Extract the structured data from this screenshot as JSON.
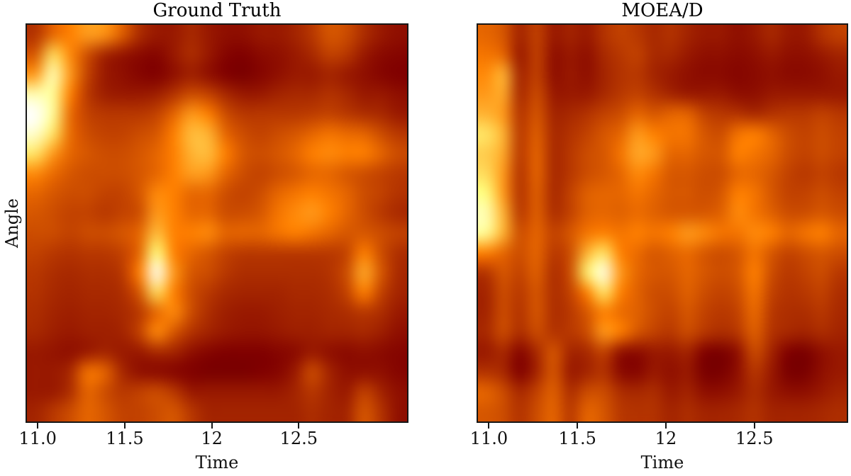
{
  "figure": {
    "background_color": "#ffffff",
    "spine_color": "#161616",
    "text_color": "#000000"
  },
  "chart_data": [
    {
      "type": "heatmap",
      "title": "Ground Truth",
      "xlabel": "Time",
      "ylabel": "Angle",
      "colormap": "afmhot",
      "values_normalized": true,
      "value_range": [
        0,
        1
      ],
      "x_range": [
        10.93,
        13.13
      ],
      "xtick_values": [
        11.0,
        11.5,
        12.0,
        12.5
      ],
      "xtick_labels": [
        "11.0",
        "11.5",
        "12",
        "12.5"
      ],
      "ytick_labels": [],
      "grid_shape": [
        20,
        22
      ],
      "values": [
        [
          0.35,
          0.45,
          0.5,
          0.56,
          0.54,
          0.44,
          0.34,
          0.3,
          0.3,
          0.33,
          0.3,
          0.28,
          0.28,
          0.3,
          0.3,
          0.32,
          0.36,
          0.42,
          0.4,
          0.34,
          0.3,
          0.28
        ],
        [
          0.42,
          0.68,
          0.52,
          0.4,
          0.32,
          0.29,
          0.27,
          0.26,
          0.3,
          0.34,
          0.3,
          0.26,
          0.25,
          0.27,
          0.28,
          0.3,
          0.33,
          0.38,
          0.36,
          0.3,
          0.27,
          0.26
        ],
        [
          0.55,
          0.85,
          0.55,
          0.38,
          0.3,
          0.28,
          0.26,
          0.25,
          0.28,
          0.31,
          0.28,
          0.25,
          0.24,
          0.26,
          0.28,
          0.3,
          0.3,
          0.32,
          0.3,
          0.28,
          0.26,
          0.25
        ],
        [
          0.85,
          0.8,
          0.5,
          0.36,
          0.31,
          0.3,
          0.3,
          0.31,
          0.35,
          0.4,
          0.38,
          0.33,
          0.3,
          0.3,
          0.32,
          0.33,
          0.33,
          0.35,
          0.33,
          0.3,
          0.3,
          0.28
        ],
        [
          1.0,
          0.8,
          0.46,
          0.38,
          0.36,
          0.36,
          0.36,
          0.38,
          0.45,
          0.55,
          0.5,
          0.4,
          0.36,
          0.36,
          0.36,
          0.36,
          0.37,
          0.38,
          0.36,
          0.34,
          0.33,
          0.3
        ],
        [
          0.9,
          0.7,
          0.46,
          0.4,
          0.38,
          0.38,
          0.4,
          0.42,
          0.5,
          0.62,
          0.6,
          0.45,
          0.4,
          0.38,
          0.4,
          0.42,
          0.45,
          0.48,
          0.46,
          0.45,
          0.4,
          0.36
        ],
        [
          0.7,
          0.55,
          0.45,
          0.42,
          0.4,
          0.4,
          0.42,
          0.45,
          0.5,
          0.6,
          0.62,
          0.5,
          0.42,
          0.4,
          0.42,
          0.45,
          0.5,
          0.52,
          0.5,
          0.5,
          0.45,
          0.4
        ],
        [
          0.52,
          0.46,
          0.42,
          0.4,
          0.4,
          0.4,
          0.42,
          0.45,
          0.5,
          0.56,
          0.55,
          0.45,
          0.4,
          0.38,
          0.4,
          0.42,
          0.45,
          0.45,
          0.42,
          0.4,
          0.38,
          0.36
        ],
        [
          0.45,
          0.42,
          0.4,
          0.4,
          0.38,
          0.38,
          0.42,
          0.52,
          0.5,
          0.45,
          0.45,
          0.4,
          0.38,
          0.4,
          0.45,
          0.48,
          0.5,
          0.48,
          0.45,
          0.4,
          0.38,
          0.35
        ],
        [
          0.42,
          0.4,
          0.38,
          0.38,
          0.36,
          0.38,
          0.4,
          0.55,
          0.5,
          0.45,
          0.45,
          0.4,
          0.4,
          0.42,
          0.48,
          0.52,
          0.55,
          0.5,
          0.45,
          0.4,
          0.36,
          0.33
        ],
        [
          0.4,
          0.4,
          0.38,
          0.4,
          0.4,
          0.42,
          0.45,
          0.62,
          0.5,
          0.5,
          0.52,
          0.45,
          0.45,
          0.45,
          0.48,
          0.5,
          0.48,
          0.45,
          0.42,
          0.42,
          0.4,
          0.38
        ],
        [
          0.38,
          0.36,
          0.35,
          0.36,
          0.36,
          0.38,
          0.45,
          0.75,
          0.5,
          0.45,
          0.42,
          0.38,
          0.36,
          0.36,
          0.36,
          0.36,
          0.36,
          0.36,
          0.38,
          0.5,
          0.4,
          0.34
        ],
        [
          0.36,
          0.34,
          0.33,
          0.34,
          0.34,
          0.36,
          0.5,
          0.97,
          0.55,
          0.42,
          0.4,
          0.36,
          0.34,
          0.34,
          0.34,
          0.34,
          0.34,
          0.35,
          0.4,
          0.58,
          0.42,
          0.33
        ],
        [
          0.35,
          0.33,
          0.32,
          0.33,
          0.33,
          0.34,
          0.42,
          0.68,
          0.5,
          0.4,
          0.36,
          0.33,
          0.32,
          0.32,
          0.32,
          0.33,
          0.33,
          0.34,
          0.38,
          0.5,
          0.38,
          0.32
        ],
        [
          0.34,
          0.32,
          0.31,
          0.32,
          0.32,
          0.33,
          0.36,
          0.45,
          0.52,
          0.4,
          0.34,
          0.31,
          0.3,
          0.3,
          0.31,
          0.32,
          0.32,
          0.33,
          0.34,
          0.36,
          0.34,
          0.3
        ],
        [
          0.33,
          0.31,
          0.3,
          0.31,
          0.31,
          0.32,
          0.38,
          0.52,
          0.42,
          0.35,
          0.32,
          0.3,
          0.29,
          0.29,
          0.3,
          0.31,
          0.31,
          0.32,
          0.32,
          0.33,
          0.31,
          0.28
        ],
        [
          0.3,
          0.29,
          0.28,
          0.3,
          0.32,
          0.3,
          0.3,
          0.33,
          0.32,
          0.28,
          0.26,
          0.25,
          0.25,
          0.25,
          0.26,
          0.27,
          0.3,
          0.28,
          0.27,
          0.28,
          0.27,
          0.26
        ],
        [
          0.3,
          0.3,
          0.33,
          0.48,
          0.45,
          0.33,
          0.28,
          0.27,
          0.26,
          0.25,
          0.24,
          0.24,
          0.24,
          0.25,
          0.26,
          0.3,
          0.4,
          0.32,
          0.28,
          0.28,
          0.28,
          0.26
        ],
        [
          0.3,
          0.3,
          0.34,
          0.45,
          0.4,
          0.36,
          0.38,
          0.4,
          0.36,
          0.3,
          0.3,
          0.3,
          0.3,
          0.3,
          0.3,
          0.32,
          0.36,
          0.32,
          0.3,
          0.38,
          0.32,
          0.28
        ],
        [
          0.32,
          0.36,
          0.4,
          0.45,
          0.42,
          0.38,
          0.38,
          0.4,
          0.42,
          0.36,
          0.32,
          0.32,
          0.32,
          0.32,
          0.32,
          0.32,
          0.34,
          0.32,
          0.32,
          0.42,
          0.35,
          0.28
        ]
      ]
    },
    {
      "type": "heatmap",
      "title": "MOEA/D",
      "xlabel": "Time",
      "ylabel": "",
      "colormap": "afmhot",
      "values_normalized": true,
      "value_range": [
        0,
        1
      ],
      "x_range": [
        10.93,
        13.03
      ],
      "xtick_values": [
        11.0,
        11.5,
        12.0,
        12.5
      ],
      "xtick_labels": [
        "11.0",
        "11.5",
        "12",
        "12.5"
      ],
      "ytick_labels": [],
      "grid_shape": [
        20,
        22
      ],
      "values": [
        [
          0.45,
          0.42,
          0.32,
          0.38,
          0.3,
          0.32,
          0.3,
          0.35,
          0.38,
          0.36,
          0.33,
          0.35,
          0.32,
          0.3,
          0.3,
          0.28,
          0.3,
          0.33,
          0.3,
          0.3,
          0.35,
          0.38
        ],
        [
          0.48,
          0.45,
          0.3,
          0.38,
          0.28,
          0.3,
          0.28,
          0.33,
          0.36,
          0.38,
          0.33,
          0.33,
          0.3,
          0.28,
          0.28,
          0.27,
          0.28,
          0.3,
          0.28,
          0.28,
          0.3,
          0.32
        ],
        [
          0.52,
          0.6,
          0.32,
          0.38,
          0.28,
          0.3,
          0.28,
          0.32,
          0.35,
          0.36,
          0.32,
          0.3,
          0.28,
          0.27,
          0.27,
          0.26,
          0.27,
          0.28,
          0.27,
          0.27,
          0.28,
          0.3
        ],
        [
          0.55,
          0.58,
          0.33,
          0.4,
          0.3,
          0.3,
          0.3,
          0.33,
          0.36,
          0.38,
          0.35,
          0.32,
          0.3,
          0.3,
          0.3,
          0.28,
          0.28,
          0.3,
          0.3,
          0.3,
          0.3,
          0.3
        ],
        [
          0.6,
          0.55,
          0.35,
          0.42,
          0.32,
          0.33,
          0.35,
          0.38,
          0.4,
          0.45,
          0.42,
          0.45,
          0.45,
          0.38,
          0.36,
          0.35,
          0.33,
          0.35,
          0.36,
          0.36,
          0.38,
          0.36
        ],
        [
          0.7,
          0.6,
          0.36,
          0.44,
          0.33,
          0.35,
          0.38,
          0.42,
          0.45,
          0.55,
          0.5,
          0.48,
          0.48,
          0.42,
          0.4,
          0.48,
          0.5,
          0.45,
          0.4,
          0.38,
          0.4,
          0.38
        ],
        [
          0.65,
          0.58,
          0.36,
          0.45,
          0.33,
          0.36,
          0.4,
          0.42,
          0.48,
          0.58,
          0.55,
          0.45,
          0.45,
          0.42,
          0.42,
          0.5,
          0.48,
          0.45,
          0.4,
          0.38,
          0.4,
          0.38
        ],
        [
          0.68,
          0.55,
          0.35,
          0.45,
          0.33,
          0.36,
          0.4,
          0.42,
          0.45,
          0.52,
          0.48,
          0.42,
          0.42,
          0.4,
          0.4,
          0.45,
          0.45,
          0.42,
          0.38,
          0.36,
          0.38,
          0.36
        ],
        [
          0.75,
          0.55,
          0.35,
          0.44,
          0.33,
          0.38,
          0.44,
          0.45,
          0.45,
          0.48,
          0.45,
          0.42,
          0.42,
          0.4,
          0.42,
          0.5,
          0.48,
          0.42,
          0.38,
          0.38,
          0.4,
          0.38
        ],
        [
          0.85,
          0.6,
          0.36,
          0.44,
          0.34,
          0.38,
          0.44,
          0.45,
          0.44,
          0.46,
          0.44,
          0.42,
          0.42,
          0.42,
          0.44,
          0.52,
          0.48,
          0.44,
          0.4,
          0.4,
          0.42,
          0.4
        ],
        [
          0.8,
          0.6,
          0.4,
          0.45,
          0.38,
          0.42,
          0.48,
          0.5,
          0.48,
          0.5,
          0.48,
          0.5,
          0.55,
          0.52,
          0.48,
          0.48,
          0.52,
          0.5,
          0.45,
          0.48,
          0.5,
          0.45
        ],
        [
          0.5,
          0.45,
          0.4,
          0.45,
          0.36,
          0.4,
          0.6,
          0.7,
          0.5,
          0.46,
          0.42,
          0.44,
          0.46,
          0.42,
          0.4,
          0.42,
          0.48,
          0.42,
          0.38,
          0.4,
          0.42,
          0.4
        ],
        [
          0.35,
          0.42,
          0.38,
          0.44,
          0.34,
          0.4,
          0.72,
          0.95,
          0.55,
          0.45,
          0.42,
          0.42,
          0.45,
          0.42,
          0.4,
          0.42,
          0.5,
          0.4,
          0.36,
          0.38,
          0.4,
          0.36
        ],
        [
          0.32,
          0.4,
          0.36,
          0.42,
          0.34,
          0.38,
          0.5,
          0.7,
          0.5,
          0.44,
          0.4,
          0.4,
          0.44,
          0.4,
          0.38,
          0.4,
          0.48,
          0.38,
          0.35,
          0.36,
          0.38,
          0.34
        ],
        [
          0.32,
          0.4,
          0.35,
          0.42,
          0.34,
          0.36,
          0.42,
          0.5,
          0.46,
          0.44,
          0.4,
          0.38,
          0.42,
          0.38,
          0.36,
          0.38,
          0.46,
          0.36,
          0.34,
          0.34,
          0.36,
          0.33
        ],
        [
          0.33,
          0.4,
          0.34,
          0.4,
          0.35,
          0.36,
          0.4,
          0.55,
          0.5,
          0.42,
          0.38,
          0.36,
          0.4,
          0.36,
          0.34,
          0.36,
          0.44,
          0.35,
          0.33,
          0.32,
          0.34,
          0.32
        ],
        [
          0.3,
          0.33,
          0.26,
          0.33,
          0.42,
          0.32,
          0.33,
          0.38,
          0.28,
          0.27,
          0.3,
          0.3,
          0.32,
          0.25,
          0.24,
          0.28,
          0.4,
          0.32,
          0.25,
          0.24,
          0.28,
          0.3
        ],
        [
          0.35,
          0.33,
          0.25,
          0.32,
          0.42,
          0.3,
          0.32,
          0.35,
          0.27,
          0.26,
          0.3,
          0.28,
          0.3,
          0.24,
          0.24,
          0.28,
          0.36,
          0.3,
          0.24,
          0.24,
          0.28,
          0.3
        ],
        [
          0.45,
          0.4,
          0.33,
          0.38,
          0.44,
          0.34,
          0.4,
          0.4,
          0.34,
          0.33,
          0.34,
          0.3,
          0.32,
          0.28,
          0.28,
          0.3,
          0.34,
          0.3,
          0.28,
          0.28,
          0.3,
          0.32
        ],
        [
          0.42,
          0.4,
          0.35,
          0.4,
          0.45,
          0.36,
          0.45,
          0.42,
          0.36,
          0.35,
          0.35,
          0.32,
          0.34,
          0.32,
          0.32,
          0.33,
          0.35,
          0.32,
          0.32,
          0.32,
          0.33,
          0.34
        ]
      ]
    }
  ]
}
